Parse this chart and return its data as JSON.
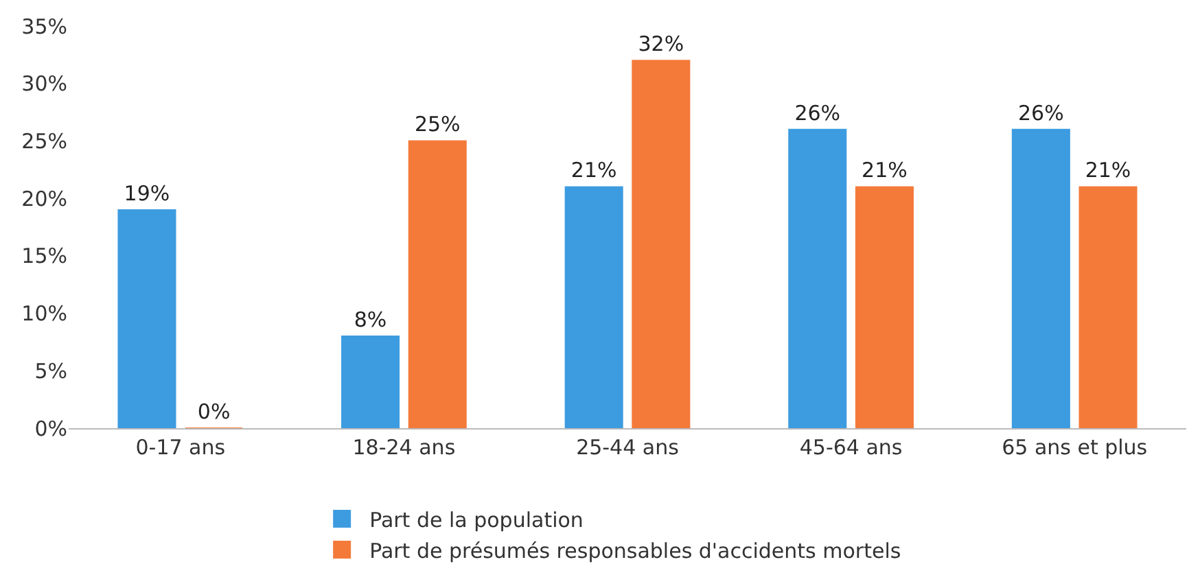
{
  "chart_data": {
    "type": "bar",
    "categories": [
      "0-17 ans",
      "18-24 ans",
      "25-44 ans",
      "45-64 ans",
      "65 ans et plus"
    ],
    "series": [
      {
        "name": "Part de la population",
        "color": "#3d9ce0",
        "values": [
          19,
          8,
          21,
          26,
          26
        ],
        "value_labels": [
          "19%",
          "8%",
          "21%",
          "26%",
          "26%"
        ]
      },
      {
        "name": "Part de présumés responsables d'accidents mortels",
        "color": "#f47a3a",
        "values": [
          0,
          25,
          32,
          21,
          21
        ],
        "value_labels": [
          "0%",
          "25%",
          "32%",
          "21%",
          "21%"
        ]
      }
    ],
    "ylim": [
      0,
      35
    ],
    "yticks": [
      {
        "value": 0,
        "label": "0%"
      },
      {
        "value": 5,
        "label": "5%"
      },
      {
        "value": 10,
        "label": "10%"
      },
      {
        "value": 15,
        "label": "15%"
      },
      {
        "value": 20,
        "label": "20%"
      },
      {
        "value": 25,
        "label": "25%"
      },
      {
        "value": 30,
        "label": "30%"
      },
      {
        "value": 35,
        "label": "35%"
      }
    ],
    "legend": "bottom"
  }
}
